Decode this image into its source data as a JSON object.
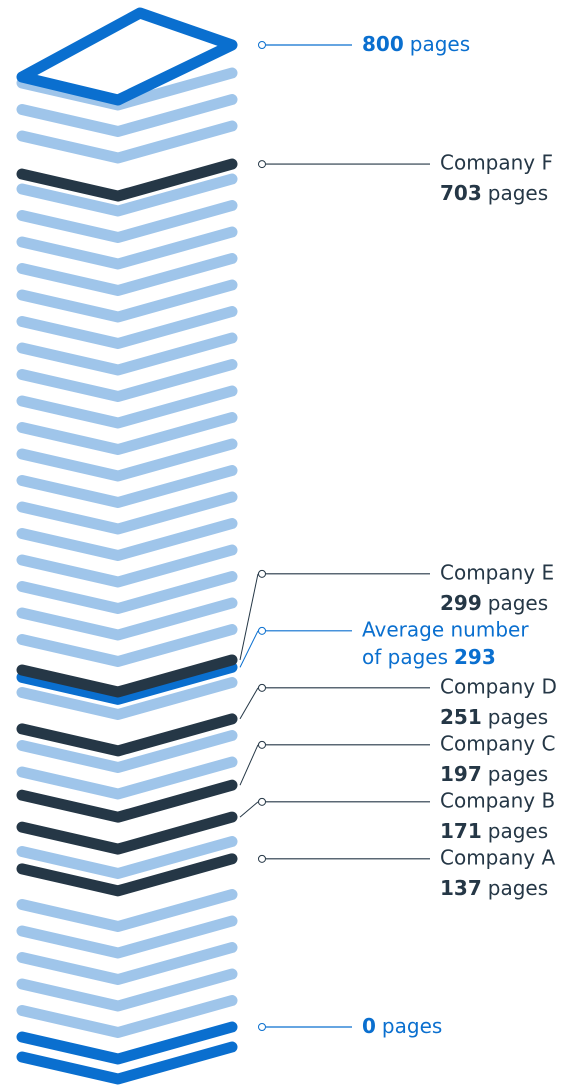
{
  "chart_data": {
    "type": "page-stack",
    "unit": "pages",
    "categories": [
      "Company A",
      "Company B",
      "Company C",
      "Company D",
      "Company E",
      "Company F"
    ],
    "values": [
      137,
      171,
      197,
      251,
      299,
      703
    ],
    "color": "#253746",
    "average_label": [
      "Average number",
      "of pages"
    ],
    "average": 293,
    "average_color": "#0a6fcf",
    "stack_color": "#9fc5ea",
    "ylim": [
      0,
      800
    ],
    "yticks": [
      0,
      800
    ],
    "tick_color": "#0a6fcf"
  }
}
